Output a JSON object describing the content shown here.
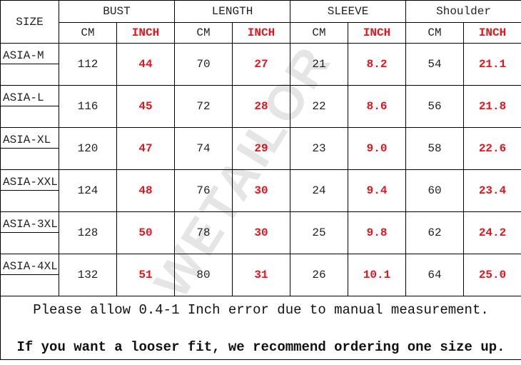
{
  "header": {
    "size": "SIZE",
    "groups": [
      "BUST",
      "LENGTH",
      "SLEEVE",
      "Shoulder"
    ],
    "cm": "CM",
    "inch": "INCH"
  },
  "rows": [
    {
      "size": "ASIA-M",
      "bust_cm": "112",
      "bust_in": "44",
      "length_cm": "70",
      "length_in": "27",
      "sleeve_cm": "21",
      "sleeve_in": "8.2",
      "shoulder_cm": "54",
      "shoulder_in": "21.1"
    },
    {
      "size": "ASIA-L",
      "bust_cm": "116",
      "bust_in": "45",
      "length_cm": "72",
      "length_in": "28",
      "sleeve_cm": "22",
      "sleeve_in": "8.6",
      "shoulder_cm": "56",
      "shoulder_in": "21.8"
    },
    {
      "size": "ASIA-XL",
      "bust_cm": "120",
      "bust_in": "47",
      "length_cm": "74",
      "length_in": "29",
      "sleeve_cm": "23",
      "sleeve_in": "9.0",
      "shoulder_cm": "58",
      "shoulder_in": "22.6"
    },
    {
      "size": "ASIA-XXL",
      "bust_cm": "124",
      "bust_in": "48",
      "length_cm": "76",
      "length_in": "30",
      "sleeve_cm": "24",
      "sleeve_in": "9.4",
      "shoulder_cm": "60",
      "shoulder_in": "23.4"
    },
    {
      "size": "ASIA-3XL",
      "bust_cm": "128",
      "bust_in": "50",
      "length_cm": "78",
      "length_in": "30",
      "sleeve_cm": "25",
      "sleeve_in": "9.8",
      "shoulder_cm": "62",
      "shoulder_in": "24.2"
    },
    {
      "size": "ASIA-4XL",
      "bust_cm": "132",
      "bust_in": "51",
      "length_cm": "80",
      "length_in": "31",
      "sleeve_cm": "26",
      "sleeve_in": "10.1",
      "shoulder_cm": "64",
      "shoulder_in": "25.0"
    }
  ],
  "notes": {
    "error": "Please allow 0.4-1 Inch error due to manual measurement.",
    "fit": "If you want a looser fit, we recommend ordering one size up."
  },
  "watermark": "WETAILOR",
  "colors": {
    "inch": "#e8141c",
    "border": "#000000"
  }
}
